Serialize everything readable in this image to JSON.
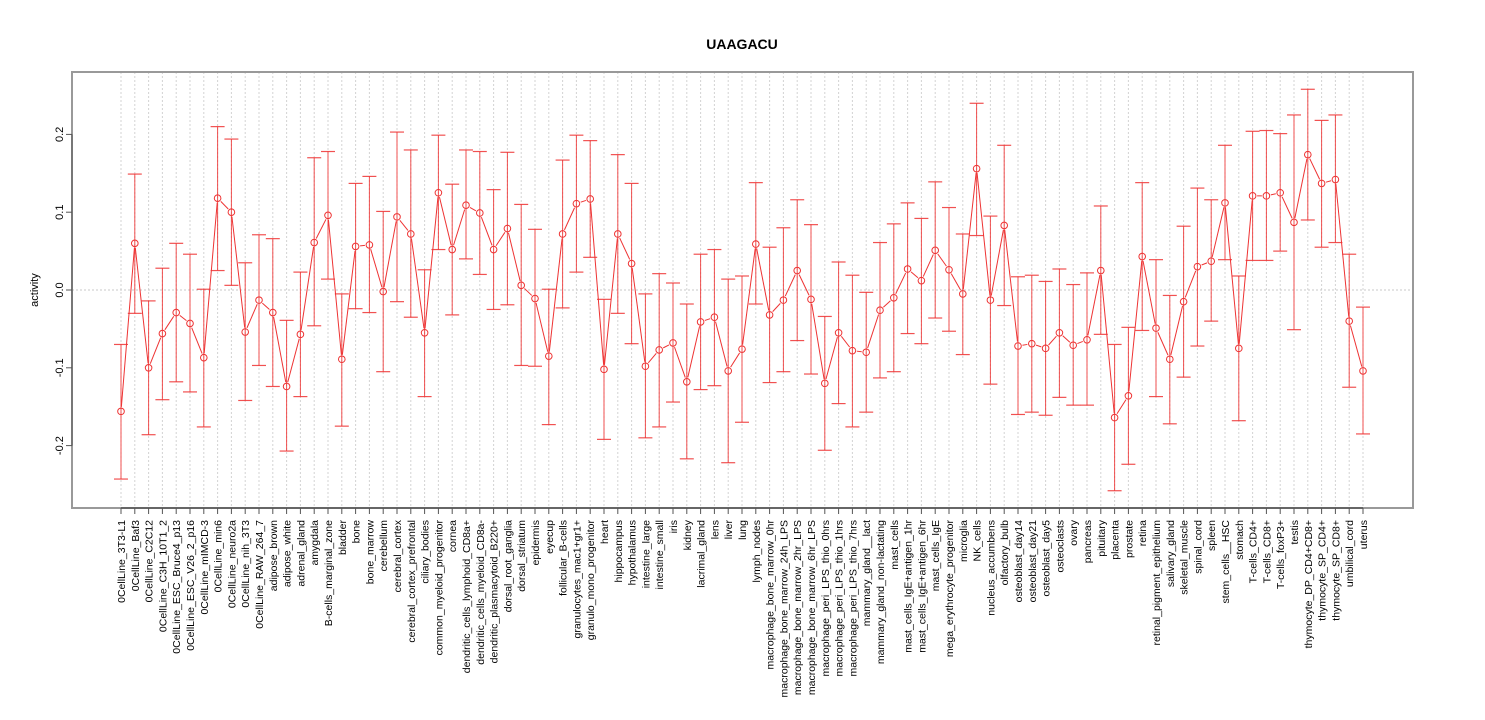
{
  "chart_data": {
    "type": "line",
    "title": "UAAGACU",
    "xlabel": "",
    "ylabel": "activity",
    "ylim": [
      -0.28,
      0.28
    ],
    "yticks": [
      -0.2,
      -0.1,
      0.0,
      0.1,
      0.2
    ],
    "ytick_labels": [
      "-0.2",
      "-0.1",
      "0.0",
      "0.1",
      "0.2"
    ],
    "grid": "vertical dotted at each category; horizontal dotted at 0",
    "legend": "none",
    "series_color": "#ee3333",
    "series": [
      {
        "name": "activity",
        "error_bars": true,
        "categories": [
          "0CellLine_3T3-L1",
          "0CellLine_Baf3",
          "0CellLine_C2C12",
          "0CellLine_C3H_10T1_2",
          "0CellLine_ESC_Bruce4_p13",
          "0CellLine_ESC_V26_2_p16",
          "0CellLine_mIMCD-3",
          "0CellLine_min6",
          "0CellLine_neuro2a",
          "0CellLine_nih_3T3",
          "0CellLine_RAW_264_7",
          "adipose_brown",
          "adipose_white",
          "adrenal_gland",
          "amygdala",
          "B-cells_marginal_zone",
          "bladder",
          "bone",
          "bone_marrow",
          "cerebellum",
          "cerebral_cortex",
          "cerebral_cortex_prefrontal",
          "ciliary_bodies",
          "common_myeloid_progenitor",
          "cornea",
          "dendritic_cells_lymphoid_CD8a+",
          "dendritic_cells_myeloid_CD8a-",
          "dendritic_plasmacytoid_B220+",
          "dorsal_root_ganglia",
          "dorsal_striatum",
          "epidermis",
          "eyecup",
          "follicular_B-cells",
          "granulocytes_mac1+gr1+",
          "granulo_mono_progenitor",
          "heart",
          "hippocampus",
          "hypothalamus",
          "intestine_large",
          "intestine_small",
          "iris",
          "kidney",
          "lacrimal_gland",
          "lens",
          "liver",
          "lung",
          "lymph_nodes",
          "macrophage_bone_marrow_0hr",
          "macrophage_bone_marrow_24h_LPS",
          "macrophage_bone_marrow_2hr_LPS",
          "macrophage_bone_marrow_6hr_LPS",
          "macrophage_peri_LPS_thio_0hrs",
          "macrophage_peri_LPS_thio_1hrs",
          "macrophage_peri_LPS_thio_7hrs",
          "mammary_gland__lact",
          "mammary_gland_non-lactating",
          "mast_cells",
          "mast_cells_IgE+antigen_1hr",
          "mast_cells_IgE+antigen_6hr",
          "mast_cells_IgE",
          "mega_erythrocyte_progenitor",
          "microglia",
          "NK_cells",
          "nucleus_accumbens",
          "olfactory_bulb",
          "osteoblast_day14",
          "osteoblast_day21",
          "osteoblast_day5",
          "osteoclasts",
          "ovary",
          "pancreas",
          "pituitary",
          "placenta",
          "prostate",
          "retina",
          "retinal_pigment_epithelium",
          "salivary_gland",
          "skeletal_muscle",
          "spinal_cord",
          "spleen",
          "stem_cells__HSC",
          "stomach",
          "T-cells_CD4+",
          "T-cells_CD8+",
          "T-cells_foxP3+",
          "testis",
          "thymocyte_DP_CD4+CD8+",
          "thymocyte_SP_CD4+",
          "thymocyte_SP_CD8+",
          "umbilical_cord",
          "uterus"
        ],
        "values": [
          -0.156,
          0.06,
          -0.1,
          -0.056,
          -0.029,
          -0.043,
          -0.087,
          0.118,
          0.1,
          -0.054,
          -0.013,
          -0.029,
          -0.124,
          -0.057,
          0.061,
          0.096,
          -0.089,
          0.056,
          0.058,
          -0.002,
          0.094,
          0.072,
          -0.055,
          0.125,
          0.052,
          0.109,
          0.099,
          0.052,
          0.079,
          0.006,
          -0.011,
          -0.085,
          0.072,
          0.111,
          0.117,
          -0.102,
          0.072,
          0.034,
          -0.098,
          -0.077,
          -0.068,
          -0.118,
          -0.041,
          -0.035,
          -0.104,
          -0.076,
          0.059,
          -0.032,
          -0.013,
          0.025,
          -0.012,
          -0.12,
          -0.055,
          -0.078,
          -0.08,
          -0.026,
          -0.01,
          0.027,
          0.012,
          0.051,
          0.026,
          -0.005,
          0.156,
          -0.013,
          0.083,
          -0.072,
          -0.069,
          -0.075,
          -0.055,
          -0.071,
          -0.064,
          0.025,
          -0.164,
          -0.136,
          0.043,
          -0.049,
          -0.089,
          -0.015,
          0.03,
          0.037,
          0.112,
          -0.075,
          0.121,
          0.121,
          0.125,
          0.087,
          0.174,
          0.137,
          0.142,
          -0.04,
          -0.104
        ],
        "lower": [
          -0.243,
          -0.03,
          -0.186,
          -0.141,
          -0.118,
          -0.131,
          -0.176,
          0.025,
          0.006,
          -0.142,
          -0.097,
          -0.124,
          -0.207,
          -0.137,
          -0.046,
          0.014,
          -0.175,
          -0.024,
          -0.029,
          -0.105,
          -0.015,
          -0.035,
          -0.137,
          0.052,
          -0.032,
          0.04,
          0.02,
          -0.025,
          -0.019,
          -0.097,
          -0.098,
          -0.173,
          -0.023,
          0.023,
          0.042,
          -0.192,
          -0.03,
          -0.069,
          -0.19,
          -0.176,
          -0.144,
          -0.217,
          -0.128,
          -0.123,
          -0.222,
          -0.17,
          -0.018,
          -0.119,
          -0.105,
          -0.065,
          -0.108,
          -0.206,
          -0.146,
          -0.176,
          -0.157,
          -0.113,
          -0.105,
          -0.056,
          -0.069,
          -0.036,
          -0.053,
          -0.083,
          0.07,
          -0.121,
          -0.02,
          -0.16,
          -0.157,
          -0.161,
          -0.138,
          -0.148,
          -0.148,
          -0.057,
          -0.258,
          -0.224,
          -0.052,
          -0.137,
          -0.172,
          -0.112,
          -0.072,
          -0.04,
          0.039,
          -0.168,
          0.038,
          0.038,
          0.05,
          -0.051,
          0.09,
          0.055,
          0.061,
          -0.125,
          -0.185
        ],
        "upper": [
          -0.07,
          0.149,
          -0.014,
          0.028,
          0.06,
          0.046,
          0.001,
          0.21,
          0.194,
          0.035,
          0.071,
          0.066,
          -0.039,
          0.023,
          0.17,
          0.178,
          -0.005,
          0.137,
          0.146,
          0.101,
          0.203,
          0.18,
          0.026,
          0.199,
          0.136,
          0.18,
          0.178,
          0.129,
          0.177,
          0.11,
          0.078,
          0.001,
          0.167,
          0.199,
          0.192,
          -0.012,
          0.174,
          0.137,
          -0.005,
          0.021,
          0.009,
          -0.018,
          0.046,
          0.052,
          0.014,
          0.018,
          0.138,
          0.055,
          0.08,
          0.116,
          0.084,
          -0.034,
          0.036,
          0.019,
          -0.003,
          0.061,
          0.085,
          0.112,
          0.092,
          0.139,
          0.106,
          0.072,
          0.24,
          0.095,
          0.186,
          0.017,
          0.019,
          0.011,
          0.027,
          0.007,
          0.022,
          0.108,
          -0.07,
          -0.048,
          0.138,
          0.039,
          -0.007,
          0.082,
          0.131,
          0.116,
          0.186,
          0.018,
          0.204,
          0.205,
          0.201,
          0.225,
          0.258,
          0.218,
          0.225,
          0.046,
          -0.022
        ]
      }
    ]
  }
}
